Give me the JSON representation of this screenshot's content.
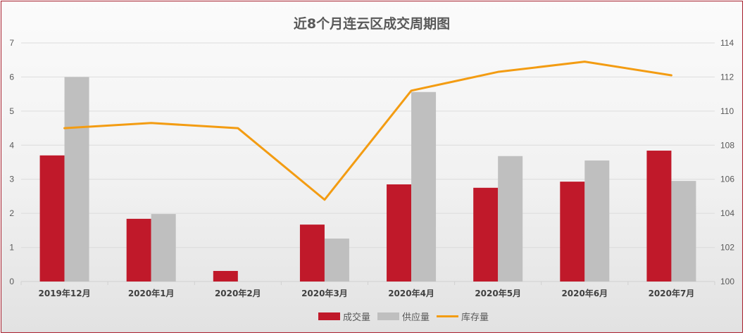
{
  "title": "近8个月连云区成交周期图",
  "colors": {
    "deal": "#c0192a",
    "supply": "#bfbfbf",
    "stock": "#f39c12",
    "border": "#a51c2a"
  },
  "legend": [
    {
      "label": "成交量",
      "type": "bar",
      "color": "#c0192a"
    },
    {
      "label": "供应量",
      "type": "bar",
      "color": "#bfbfbf"
    },
    {
      "label": "库存量",
      "type": "line",
      "color": "#f39c12"
    }
  ],
  "chart_data": {
    "type": "bar",
    "title": "近8个月连云区成交周期图",
    "categories": [
      "2019年12月",
      "2020年1月",
      "2020年2月",
      "2020年3月",
      "2020年4月",
      "2020年5月",
      "2020年6月",
      "2020年7月"
    ],
    "series": [
      {
        "name": "成交量",
        "type": "bar",
        "axis": "left",
        "values": [
          3.7,
          1.84,
          0.31,
          1.67,
          2.85,
          2.75,
          2.93,
          3.84
        ]
      },
      {
        "name": "供应量",
        "type": "bar",
        "axis": "left",
        "values": [
          6.0,
          1.98,
          0,
          1.26,
          5.56,
          3.68,
          3.55,
          2.95
        ]
      },
      {
        "name": "库存量",
        "type": "line",
        "axis": "right",
        "values": [
          109.0,
          109.3,
          109.0,
          104.8,
          111.2,
          112.3,
          112.9,
          112.1
        ]
      }
    ],
    "ylim": [
      0,
      7
    ],
    "y_ticks": [
      0,
      1,
      2,
      3,
      4,
      5,
      6,
      7
    ],
    "y2lim": [
      100,
      114
    ],
    "y2_ticks": [
      100,
      102,
      104,
      106,
      108,
      110,
      112,
      114
    ],
    "xlabel": "",
    "ylabel": "",
    "grid": true,
    "legend_position": "bottom"
  }
}
